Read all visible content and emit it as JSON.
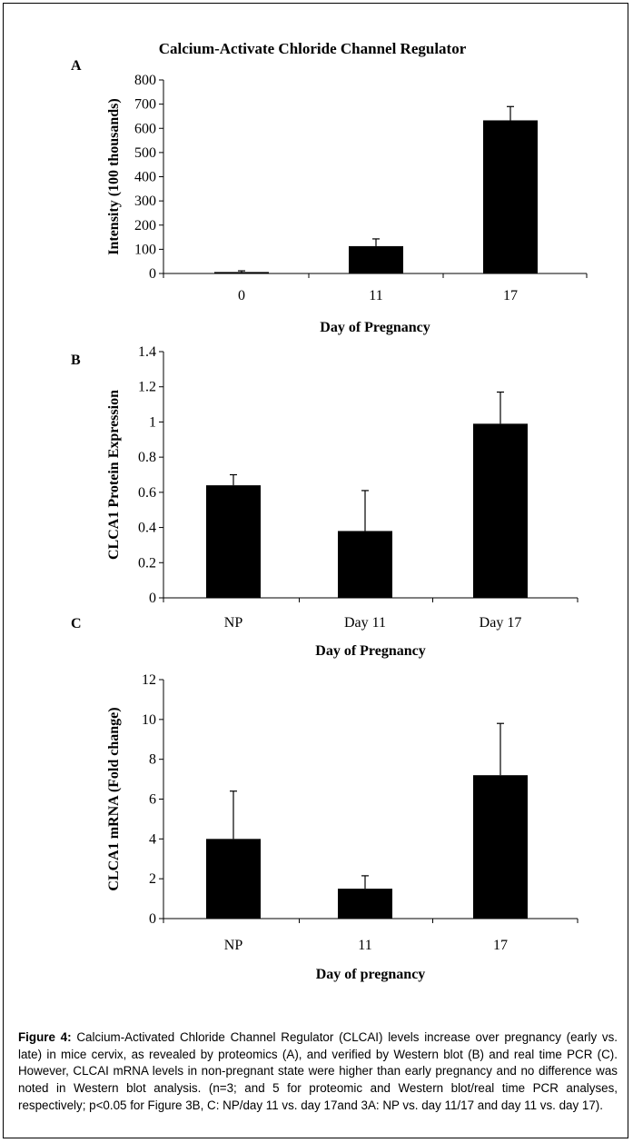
{
  "figure_title": "Calcium-Activate Chloride Channel Regulator",
  "chart_data": [
    {
      "panel": "A",
      "type": "bar",
      "categories": [
        "0",
        "11",
        "17"
      ],
      "values": [
        6,
        113,
        633
      ],
      "errors": [
        5,
        30,
        57
      ],
      "ylabel": "Intensity (100 thousands)",
      "xlabel": "Day of Pregnancy",
      "ylim": [
        0,
        800
      ],
      "yticks": [
        "0",
        "100",
        "200",
        "300",
        "400",
        "500",
        "600",
        "700",
        "800"
      ],
      "grid": false,
      "bar_color": "#000000"
    },
    {
      "panel": "B",
      "type": "bar",
      "categories": [
        "NP",
        "Day 11",
        "Day 17"
      ],
      "values": [
        0.64,
        0.38,
        0.99
      ],
      "errors": [
        0.06,
        0.23,
        0.18
      ],
      "ylabel": "CLCA1 Protein Expression",
      "xlabel": "Day of Pregnancy",
      "ylim": [
        0,
        1.4
      ],
      "yticks": [
        "0",
        "0.2",
        "0.4",
        "0.6",
        "0.8",
        "1",
        "1.2",
        "1.4"
      ],
      "grid": false,
      "bar_color": "#000000"
    },
    {
      "panel": "C",
      "type": "bar",
      "categories": [
        "NP",
        "11",
        "17"
      ],
      "values": [
        4.0,
        1.5,
        7.2
      ],
      "errors": [
        2.4,
        0.65,
        2.6
      ],
      "ylabel": "CLCA1 mRNA  (Fold change)",
      "xlabel": "Day of pregnancy",
      "ylim": [
        0,
        12
      ],
      "yticks": [
        "0",
        "2",
        "4",
        "6",
        "8",
        "10",
        "12"
      ],
      "grid": false,
      "bar_color": "#000000"
    }
  ],
  "caption": {
    "label": "Figure 4:",
    "text": " Calcium-Activated Chloride Channel Regulator (CLCAI) levels increase over pregnancy (early vs. late) in mice cervix, as revealed by proteomics (A), and verified by Western blot (B) and real time PCR (C). However, CLCAI mRNA levels in non-pregnant state were higher than early pregnancy and no difference was noted in Western blot analysis. (n=3; and 5 for proteomic and Western blot/real time PCR analyses, respectively; p<0.05 for Figure 3B, C: NP/day 11 vs. day 17and 3A: NP vs. day 11/17 and day 11 vs. day 17)."
  }
}
